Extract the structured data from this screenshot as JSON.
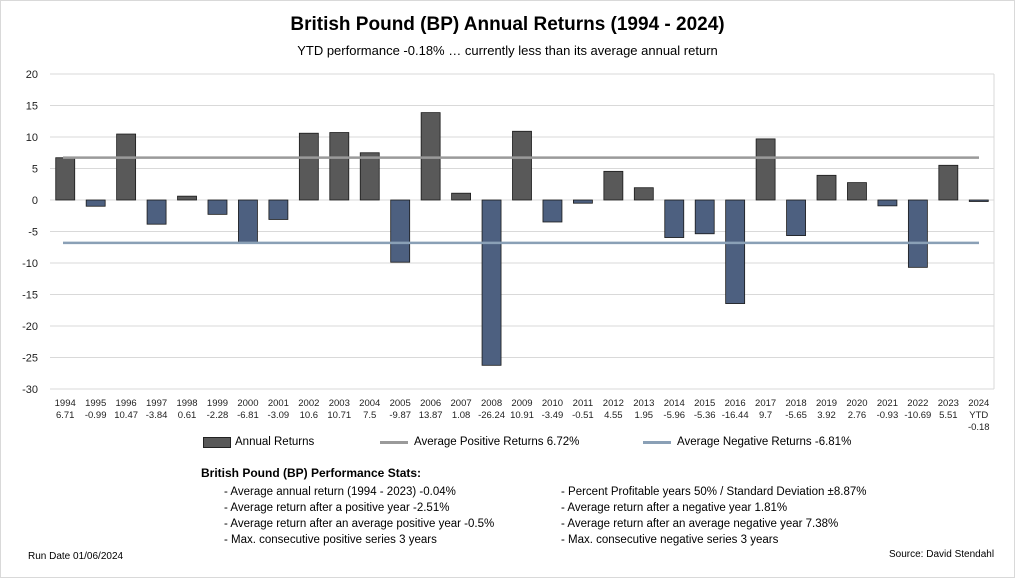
{
  "chart_data": {
    "type": "bar",
    "title": "British Pound (BP) Annual Returns (1994 - 2024)",
    "subtitle": "YTD performance -0.18% … currently less than its average annual return",
    "categories": [
      "1994",
      "1995",
      "1996",
      "1997",
      "1998",
      "1999",
      "2000",
      "2001",
      "2002",
      "2003",
      "2004",
      "2005",
      "2006",
      "2007",
      "2008",
      "2009",
      "2010",
      "2011",
      "2012",
      "2013",
      "2014",
      "2015",
      "2016",
      "2017",
      "2018",
      "2019",
      "2020",
      "2021",
      "2022",
      "2023",
      "2024"
    ],
    "category_sublabels": [
      "",
      "",
      "",
      "",
      "",
      "",
      "",
      "",
      "",
      "",
      "",
      "",
      "",
      "",
      "",
      "",
      "",
      "",
      "",
      "",
      "",
      "",
      "",
      "",
      "",
      "",
      "",
      "",
      "",
      "",
      "YTD"
    ],
    "value_labels": [
      "6.71",
      "-0.99",
      "10.47",
      "-3.84",
      "0.61",
      "-2.28",
      "-6.81",
      "-3.09",
      "10.6",
      "10.71",
      "7.5",
      "-9.87",
      "13.87",
      "1.08",
      "-26.24",
      "10.91",
      "-3.49",
      "-0.51",
      "4.55",
      "1.95",
      "-5.96",
      "-5.36",
      "-16.44",
      "9.7",
      "-5.65",
      "3.92",
      "2.76",
      "-0.93",
      "-10.69",
      "5.51",
      "-0.18"
    ],
    "series": [
      {
        "name": "Annual Returns",
        "values": [
          6.71,
          -0.99,
          10.47,
          -3.84,
          0.61,
          -2.28,
          -6.81,
          -3.09,
          10.6,
          10.71,
          7.5,
          -9.87,
          13.87,
          1.08,
          -26.24,
          10.91,
          -3.49,
          -0.51,
          4.55,
          1.95,
          -5.96,
          -5.36,
          -16.44,
          9.7,
          -5.65,
          3.92,
          2.76,
          -0.93,
          -10.69,
          5.51,
          -0.18
        ]
      }
    ],
    "reference_lines": [
      {
        "name": "Average Positive Returns 6.72%",
        "value": 6.72
      },
      {
        "name": "Average Negative Returns -6.81%",
        "value": -6.81
      }
    ],
    "ylim": [
      -30,
      20
    ],
    "yticks": [
      20,
      15,
      10,
      5,
      0,
      -5,
      -10,
      -15,
      -20,
      -25,
      -30
    ],
    "grid": true,
    "legend_position": "bottom"
  },
  "legend": {
    "annual": "Annual Returns",
    "avg_pos": "Average Positive Returns 6.72%",
    "avg_neg": "Average Negative Returns -6.81%"
  },
  "stats": {
    "title": "British Pound (BP) Performance Stats:",
    "left": [
      "- Average annual return (1994 - 2023) -0.04%",
      "- Average return after a positive year -2.51%",
      "- Average return after an average positive year -0.5%",
      "- Max. consecutive positive series 3 years"
    ],
    "right": [
      "- Percent Profitable years 50% / Standard Deviation ±8.87%",
      "- Average return after a negative year 1.81%",
      "- Average return after an average negative year 7.38%",
      "- Max. consecutive negative series 3 years"
    ]
  },
  "footer": {
    "run_date": "Run Date  01/06/2024",
    "source": "Source: David Stendahl"
  },
  "colors": {
    "positive_bar": "#595959",
    "negative_bar": "#4d6080",
    "avg_positive_line": "#9a9a9a",
    "avg_negative_line": "#8aa0b6",
    "grid": "#d9d9d9"
  }
}
